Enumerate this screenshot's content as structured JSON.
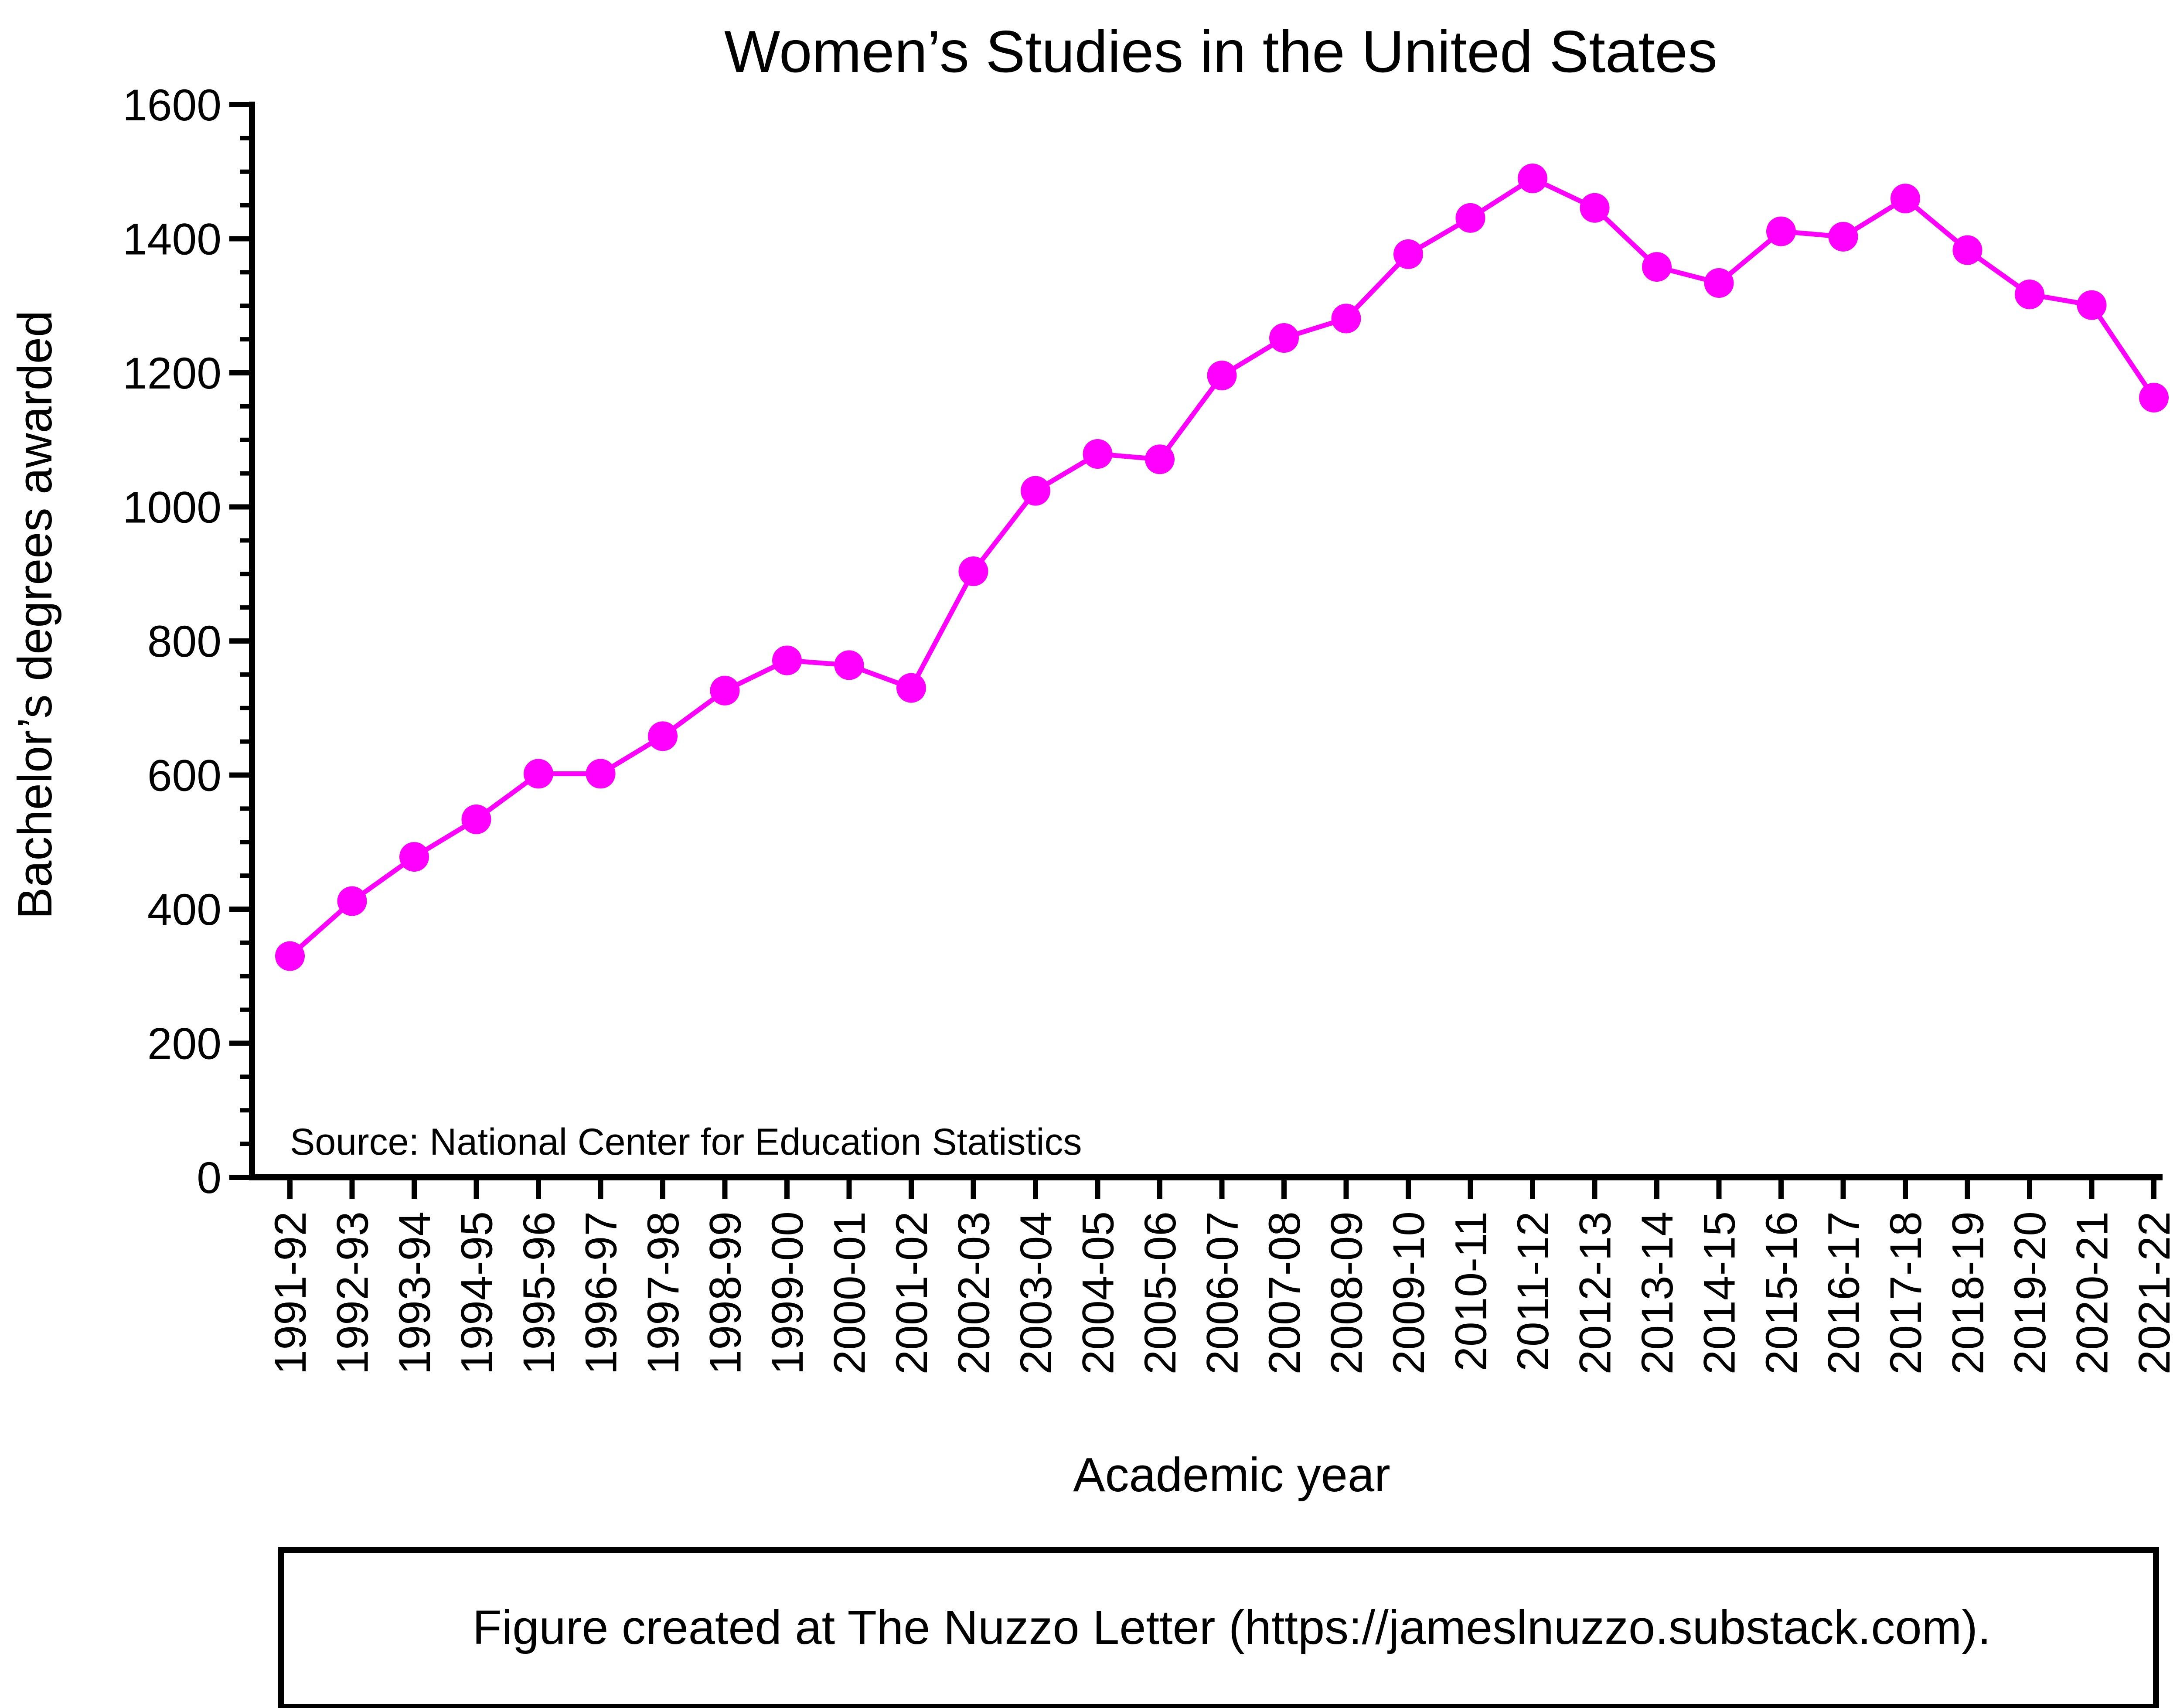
{
  "chart_data": {
    "type": "line",
    "title": "Women’s Studies in the United States",
    "xlabel": "Academic year",
    "ylabel": "Bachelor’s degrees awarded",
    "ylim": [
      0,
      1600
    ],
    "y_ticks": [
      "0",
      "200",
      "400",
      "600",
      "800",
      "1000",
      "1200",
      "1400",
      "1600"
    ],
    "y_minor_step": 50,
    "grid": false,
    "categories": [
      "1991-92",
      "1992-93",
      "1993-94",
      "1994-95",
      "1995-96",
      "1996-97",
      "1997-98",
      "1998-99",
      "1999-00",
      "2000-01",
      "2001-02",
      "2002-03",
      "2003-04",
      "2004-05",
      "2005-06",
      "2006-07",
      "2007-08",
      "2008-09",
      "2009-10",
      "2010-11",
      "2011-12",
      "2012-13",
      "2013-14",
      "2014-15",
      "2015-16",
      "2016-17",
      "2017-18",
      "2018-19",
      "2019-20",
      "2020-21",
      "2021-22"
    ],
    "series": [
      {
        "color": "#ff00ff",
        "marker": "circle",
        "values": [
          330,
          412,
          478,
          534,
          602,
          602,
          658,
          726,
          771,
          764,
          730,
          904,
          1024,
          1079,
          1071,
          1196,
          1252,
          1281,
          1377,
          1431,
          1490,
          1446,
          1358,
          1334,
          1411,
          1403,
          1460,
          1383,
          1317,
          1301,
          1163
        ]
      }
    ],
    "annotation": "Source: National Center for Education Statistics"
  },
  "footer": {
    "text": "Figure created at The Nuzzo Letter (https://jameslnuzzo.substack.com)."
  }
}
